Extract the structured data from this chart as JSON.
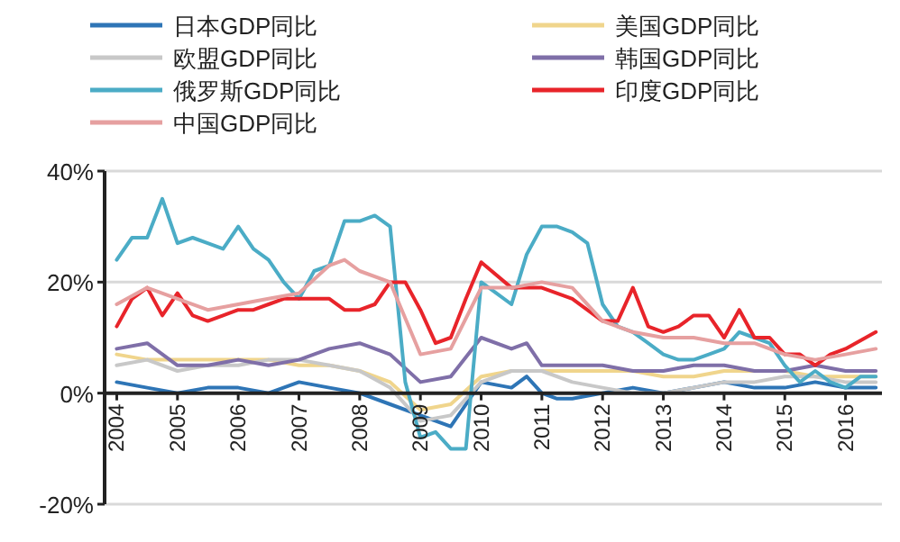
{
  "chart_data": {
    "type": "line",
    "xlim": [
      2003.8,
      2016.6
    ],
    "xticks": [
      2004,
      2005,
      2006,
      2007,
      2008,
      2009,
      2010,
      2011,
      2012,
      2013,
      2014,
      2015,
      2016
    ],
    "ylim": [
      -20,
      40
    ],
    "yticks": [
      {
        "value": -20,
        "label": "-20%"
      },
      {
        "value": 0,
        "label": "0%"
      },
      {
        "value": 20,
        "label": "20%"
      },
      {
        "value": 40,
        "label": "40%"
      }
    ],
    "grid": "y",
    "legend": "top",
    "series": [
      {
        "name": "日本GDP同比",
        "color": "#2e75b6",
        "x": [
          2004,
          2004.5,
          2005,
          2005.5,
          2006,
          2006.5,
          2007,
          2007.5,
          2008,
          2008.5,
          2009,
          2009.5,
          2010,
          2010.5,
          2010.75,
          2011,
          2011.25,
          2011.5,
          2012,
          2012.5,
          2013,
          2013.5,
          2014,
          2014.5,
          2015,
          2015.5,
          2016,
          2016.5
        ],
        "values": [
          2,
          1,
          0,
          1,
          1,
          0,
          2,
          1,
          0,
          -2,
          -4,
          -6,
          2,
          1,
          3,
          0,
          -1,
          -1,
          0,
          1,
          0,
          1,
          2,
          1,
          1,
          2,
          1,
          1
        ]
      },
      {
        "name": "美国GDP同比",
        "color": "#f0d58c",
        "x": [
          2004,
          2004.5,
          2005,
          2005.5,
          2006,
          2006.5,
          2007,
          2007.5,
          2008,
          2008.5,
          2009,
          2009.5,
          2010,
          2010.5,
          2011,
          2011.5,
          2012,
          2012.5,
          2013,
          2013.5,
          2014,
          2014.5,
          2015,
          2015.5,
          2016,
          2016.5
        ],
        "values": [
          7,
          6,
          6,
          6,
          6,
          6,
          5,
          5,
          4,
          2,
          -3,
          -2,
          3,
          4,
          4,
          4,
          4,
          4,
          3,
          3,
          4,
          4,
          4,
          3,
          3,
          3
        ]
      },
      {
        "name": "欧盟GDP同比",
        "color": "#c8c8c8",
        "x": [
          2004,
          2004.5,
          2005,
          2005.5,
          2006,
          2006.5,
          2007,
          2007.5,
          2008,
          2008.5,
          2009,
          2009.5,
          2010,
          2010.5,
          2011,
          2011.5,
          2012,
          2012.5,
          2013,
          2013.5,
          2014,
          2014.5,
          2015,
          2015.5,
          2016,
          2016.5
        ],
        "values": [
          5,
          6,
          4,
          5,
          5,
          6,
          6,
          5,
          4,
          1,
          -5,
          -4,
          2,
          4,
          4,
          2,
          1,
          0,
          0,
          1,
          2,
          2,
          3,
          3,
          2,
          2
        ]
      },
      {
        "name": "韩国GDP同比",
        "color": "#7f6fa8",
        "x": [
          2004,
          2004.5,
          2005,
          2005.5,
          2006,
          2006.5,
          2007,
          2007.5,
          2008,
          2008.5,
          2009,
          2009.5,
          2010,
          2010.5,
          2010.75,
          2011,
          2011.5,
          2012,
          2012.5,
          2013,
          2013.5,
          2014,
          2014.5,
          2015,
          2015.5,
          2016,
          2016.5
        ],
        "values": [
          8,
          9,
          5,
          5,
          6,
          5,
          6,
          8,
          9,
          7,
          2,
          3,
          10,
          8,
          9,
          5,
          5,
          5,
          4,
          4,
          5,
          5,
          4,
          4,
          5,
          4,
          4
        ]
      },
      {
        "name": "俄罗斯GDP同比",
        "color": "#4bacc6",
        "x": [
          2004,
          2004.25,
          2004.5,
          2004.75,
          2005,
          2005.25,
          2005.5,
          2005.75,
          2006,
          2006.25,
          2006.5,
          2006.75,
          2007,
          2007.25,
          2007.5,
          2007.75,
          2008,
          2008.25,
          2008.5,
          2008.75,
          2009,
          2009.25,
          2009.5,
          2009.75,
          2010,
          2010.25,
          2010.5,
          2010.75,
          2011,
          2011.25,
          2011.5,
          2011.75,
          2012,
          2012.25,
          2012.5,
          2012.75,
          2013,
          2013.25,
          2013.5,
          2013.75,
          2014,
          2014.25,
          2014.5,
          2014.75,
          2015,
          2015.25,
          2015.5,
          2015.75,
          2016,
          2016.25,
          2016.5
        ],
        "values": [
          24,
          28,
          28,
          35,
          27,
          28,
          27,
          26,
          30,
          26,
          24,
          20,
          17,
          22,
          23,
          31,
          31,
          32,
          30,
          2,
          -8,
          -7,
          -10,
          -10,
          20,
          18,
          16,
          25,
          30,
          30,
          29,
          27,
          16,
          12,
          11,
          9,
          7,
          6,
          6,
          7,
          8,
          11,
          10,
          9,
          5,
          2,
          4,
          2,
          1,
          3,
          3
        ]
      },
      {
        "name": "印度GDP同比",
        "color": "#e8242a",
        "x": [
          2004,
          2004.25,
          2004.5,
          2004.75,
          2005,
          2005.25,
          2005.5,
          2005.75,
          2006,
          2006.25,
          2006.5,
          2006.75,
          2007,
          2007.25,
          2007.5,
          2007.75,
          2008,
          2008.25,
          2008.5,
          2008.75,
          2009,
          2009.25,
          2009.5,
          2009.75,
          2010,
          2010.5,
          2011,
          2011.5,
          2012,
          2012.25,
          2012.5,
          2012.75,
          2013,
          2013.25,
          2013.5,
          2013.75,
          2014,
          2014.25,
          2014.5,
          2014.75,
          2015,
          2015.25,
          2015.5,
          2015.75,
          2016,
          2016.5
        ],
        "values": [
          12,
          17,
          19,
          14,
          18,
          14,
          13,
          14,
          15,
          15,
          16,
          17,
          17,
          17,
          17,
          15,
          15,
          16,
          20,
          20,
          15,
          9,
          10,
          17,
          23.6,
          19,
          19,
          17,
          13,
          13,
          19,
          12,
          11,
          12,
          14,
          14,
          10,
          15,
          10,
          10,
          7,
          7,
          5,
          7,
          8,
          11
        ]
      },
      {
        "name": "中国GDP同比",
        "color": "#e6a0a0",
        "x": [
          2004,
          2004.5,
          2005,
          2005.5,
          2006,
          2006.5,
          2007,
          2007.5,
          2007.75,
          2008,
          2008.5,
          2009,
          2009.5,
          2010,
          2010.5,
          2011,
          2011.5,
          2012,
          2012.5,
          2013,
          2013.5,
          2014,
          2014.5,
          2015,
          2015.5,
          2016,
          2016.5
        ],
        "values": [
          16,
          19,
          17,
          15,
          16,
          17,
          18,
          23,
          24,
          22,
          20,
          7,
          8,
          19,
          19,
          20,
          19,
          13,
          11,
          10,
          10,
          9,
          9,
          7,
          6,
          7,
          8
        ]
      }
    ]
  }
}
